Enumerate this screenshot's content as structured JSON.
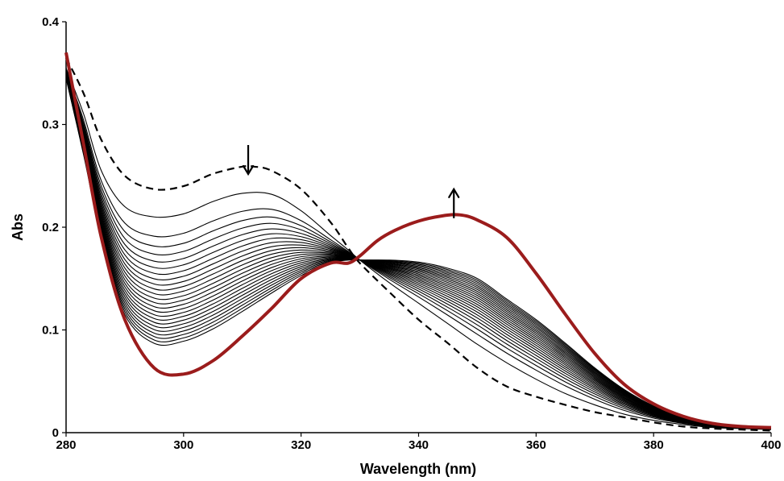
{
  "chart_data": {
    "type": "line",
    "title": "",
    "xlabel": "Wavelength (nm)",
    "ylabel": "Abs",
    "xlim": [
      280,
      400
    ],
    "ylim": [
      0,
      0.4
    ],
    "x_ticks": [
      "280",
      "300",
      "320",
      "340",
      "360",
      "380",
      "400"
    ],
    "y_ticks": [
      "0",
      "0.1",
      "0.2",
      "0.3",
      "0.4"
    ],
    "grid": false,
    "legend": "none",
    "annotations": [
      {
        "symbol": "arrow-down",
        "x": 311,
        "y": 0.28
      },
      {
        "symbol": "arrow-up",
        "x": 346,
        "y": 0.237
      }
    ],
    "initial_spectrum": {
      "style": "dashed",
      "color": "#000000",
      "x": [
        280,
        283,
        286,
        290,
        295,
        300,
        305,
        310,
        312,
        315,
        320,
        325,
        328,
        330,
        335,
        340,
        345,
        350,
        355,
        360,
        365,
        370,
        375,
        380,
        385,
        390,
        395,
        400
      ],
      "y": [
        0.365,
        0.33,
        0.285,
        0.25,
        0.237,
        0.24,
        0.252,
        0.259,
        0.259,
        0.255,
        0.237,
        0.205,
        0.18,
        0.165,
        0.137,
        0.11,
        0.087,
        0.063,
        0.045,
        0.035,
        0.027,
        0.02,
        0.015,
        0.01,
        0.006,
        0.004,
        0.003,
        0.002
      ]
    },
    "final_spectrum": {
      "style": "solid-thick",
      "color": "#9b1c1c",
      "x": [
        280,
        283,
        286,
        290,
        295,
        300,
        305,
        310,
        315,
        320,
        325,
        328,
        330,
        333,
        336,
        340,
        344,
        347,
        350,
        355,
        360,
        365,
        370,
        375,
        380,
        385,
        390,
        395,
        400
      ],
      "y": [
        0.37,
        0.28,
        0.19,
        0.11,
        0.063,
        0.057,
        0.07,
        0.094,
        0.121,
        0.15,
        0.165,
        0.165,
        0.172,
        0.187,
        0.197,
        0.206,
        0.211,
        0.212,
        0.207,
        0.19,
        0.155,
        0.115,
        0.077,
        0.047,
        0.028,
        0.016,
        0.009,
        0.006,
        0.005
      ]
    },
    "intermediate_spectra": {
      "count": 24,
      "color": "#000000",
      "x": [
        280,
        283,
        286,
        290,
        295,
        300,
        305,
        310,
        315,
        320,
        325,
        328,
        330,
        335,
        340,
        345,
        350,
        355,
        360,
        365,
        370,
        375,
        380,
        385,
        390,
        395,
        400
      ],
      "y_start": [
        0.355,
        0.31,
        0.255,
        0.22,
        0.21,
        0.213,
        0.225,
        0.233,
        0.232,
        0.216,
        0.192,
        0.178,
        0.168,
        0.146,
        0.126,
        0.106,
        0.086,
        0.068,
        0.052,
        0.038,
        0.027,
        0.018,
        0.012,
        0.008,
        0.005,
        0.004,
        0.003
      ],
      "y_end": [
        0.345,
        0.27,
        0.19,
        0.115,
        0.087,
        0.089,
        0.101,
        0.118,
        0.136,
        0.153,
        0.165,
        0.168,
        0.168,
        0.168,
        0.166,
        0.16,
        0.15,
        0.13,
        0.11,
        0.087,
        0.063,
        0.042,
        0.026,
        0.015,
        0.009,
        0.006,
        0.004
      ]
    }
  }
}
